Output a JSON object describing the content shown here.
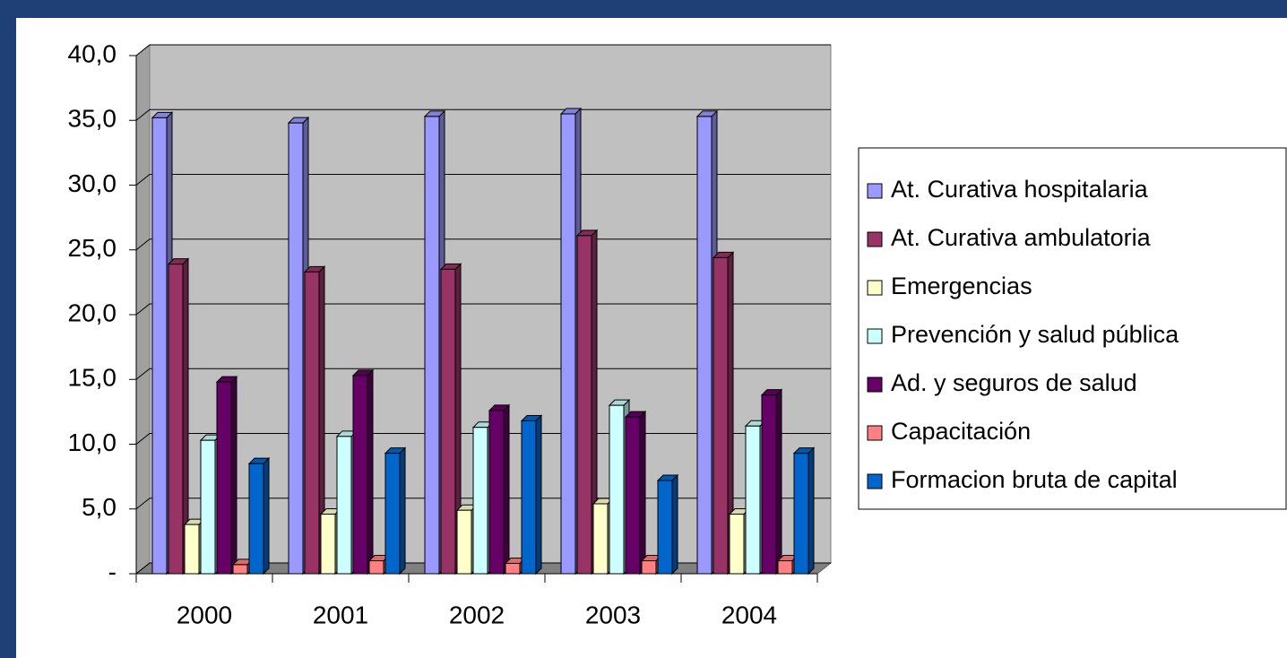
{
  "chart_data": {
    "type": "bar",
    "categories": [
      "2000",
      "2001",
      "2002",
      "2003",
      "2004"
    ],
    "series": [
      {
        "name": "At. Curativa hospitalaria",
        "color": "#9999ff",
        "values": [
          35.2,
          34.8,
          35.3,
          35.5,
          35.3
        ]
      },
      {
        "name": "At. Curativa ambulatoria",
        "color": "#993366",
        "values": [
          23.9,
          23.3,
          23.5,
          26.1,
          24.4
        ]
      },
      {
        "name": "Emergencias",
        "color": "#ffffcc",
        "values": [
          3.8,
          4.6,
          4.9,
          5.4,
          4.6
        ]
      },
      {
        "name": "Prevención y salud pública",
        "color": "#ccffff",
        "values": [
          10.3,
          10.6,
          11.3,
          13.0,
          11.4
        ]
      },
      {
        "name": "Ad. y seguros de salud",
        "color": "#660066",
        "values": [
          14.8,
          15.3,
          12.6,
          12.1,
          13.8
        ]
      },
      {
        "name": "Capacitación",
        "color": "#ff8080",
        "values": [
          0.7,
          1.0,
          0.8,
          1.0,
          1.0
        ]
      },
      {
        "name": "Formacion bruta de capital",
        "color": "#0066cc",
        "values": [
          8.5,
          9.3,
          11.8,
          7.2,
          9.3
        ]
      }
    ],
    "ylim": [
      0,
      40
    ],
    "yticks": [
      {
        "value": 0,
        "label": "-"
      },
      {
        "value": 5,
        "label": "5,0"
      },
      {
        "value": 10,
        "label": "10,0"
      },
      {
        "value": 15,
        "label": "15,0"
      },
      {
        "value": 20,
        "label": "20,0"
      },
      {
        "value": 25,
        "label": "25,0"
      },
      {
        "value": 30,
        "label": "30,0"
      },
      {
        "value": 35,
        "label": "35,0"
      },
      {
        "value": 40,
        "label": "40,0"
      }
    ],
    "grid": true,
    "legend": "right"
  }
}
